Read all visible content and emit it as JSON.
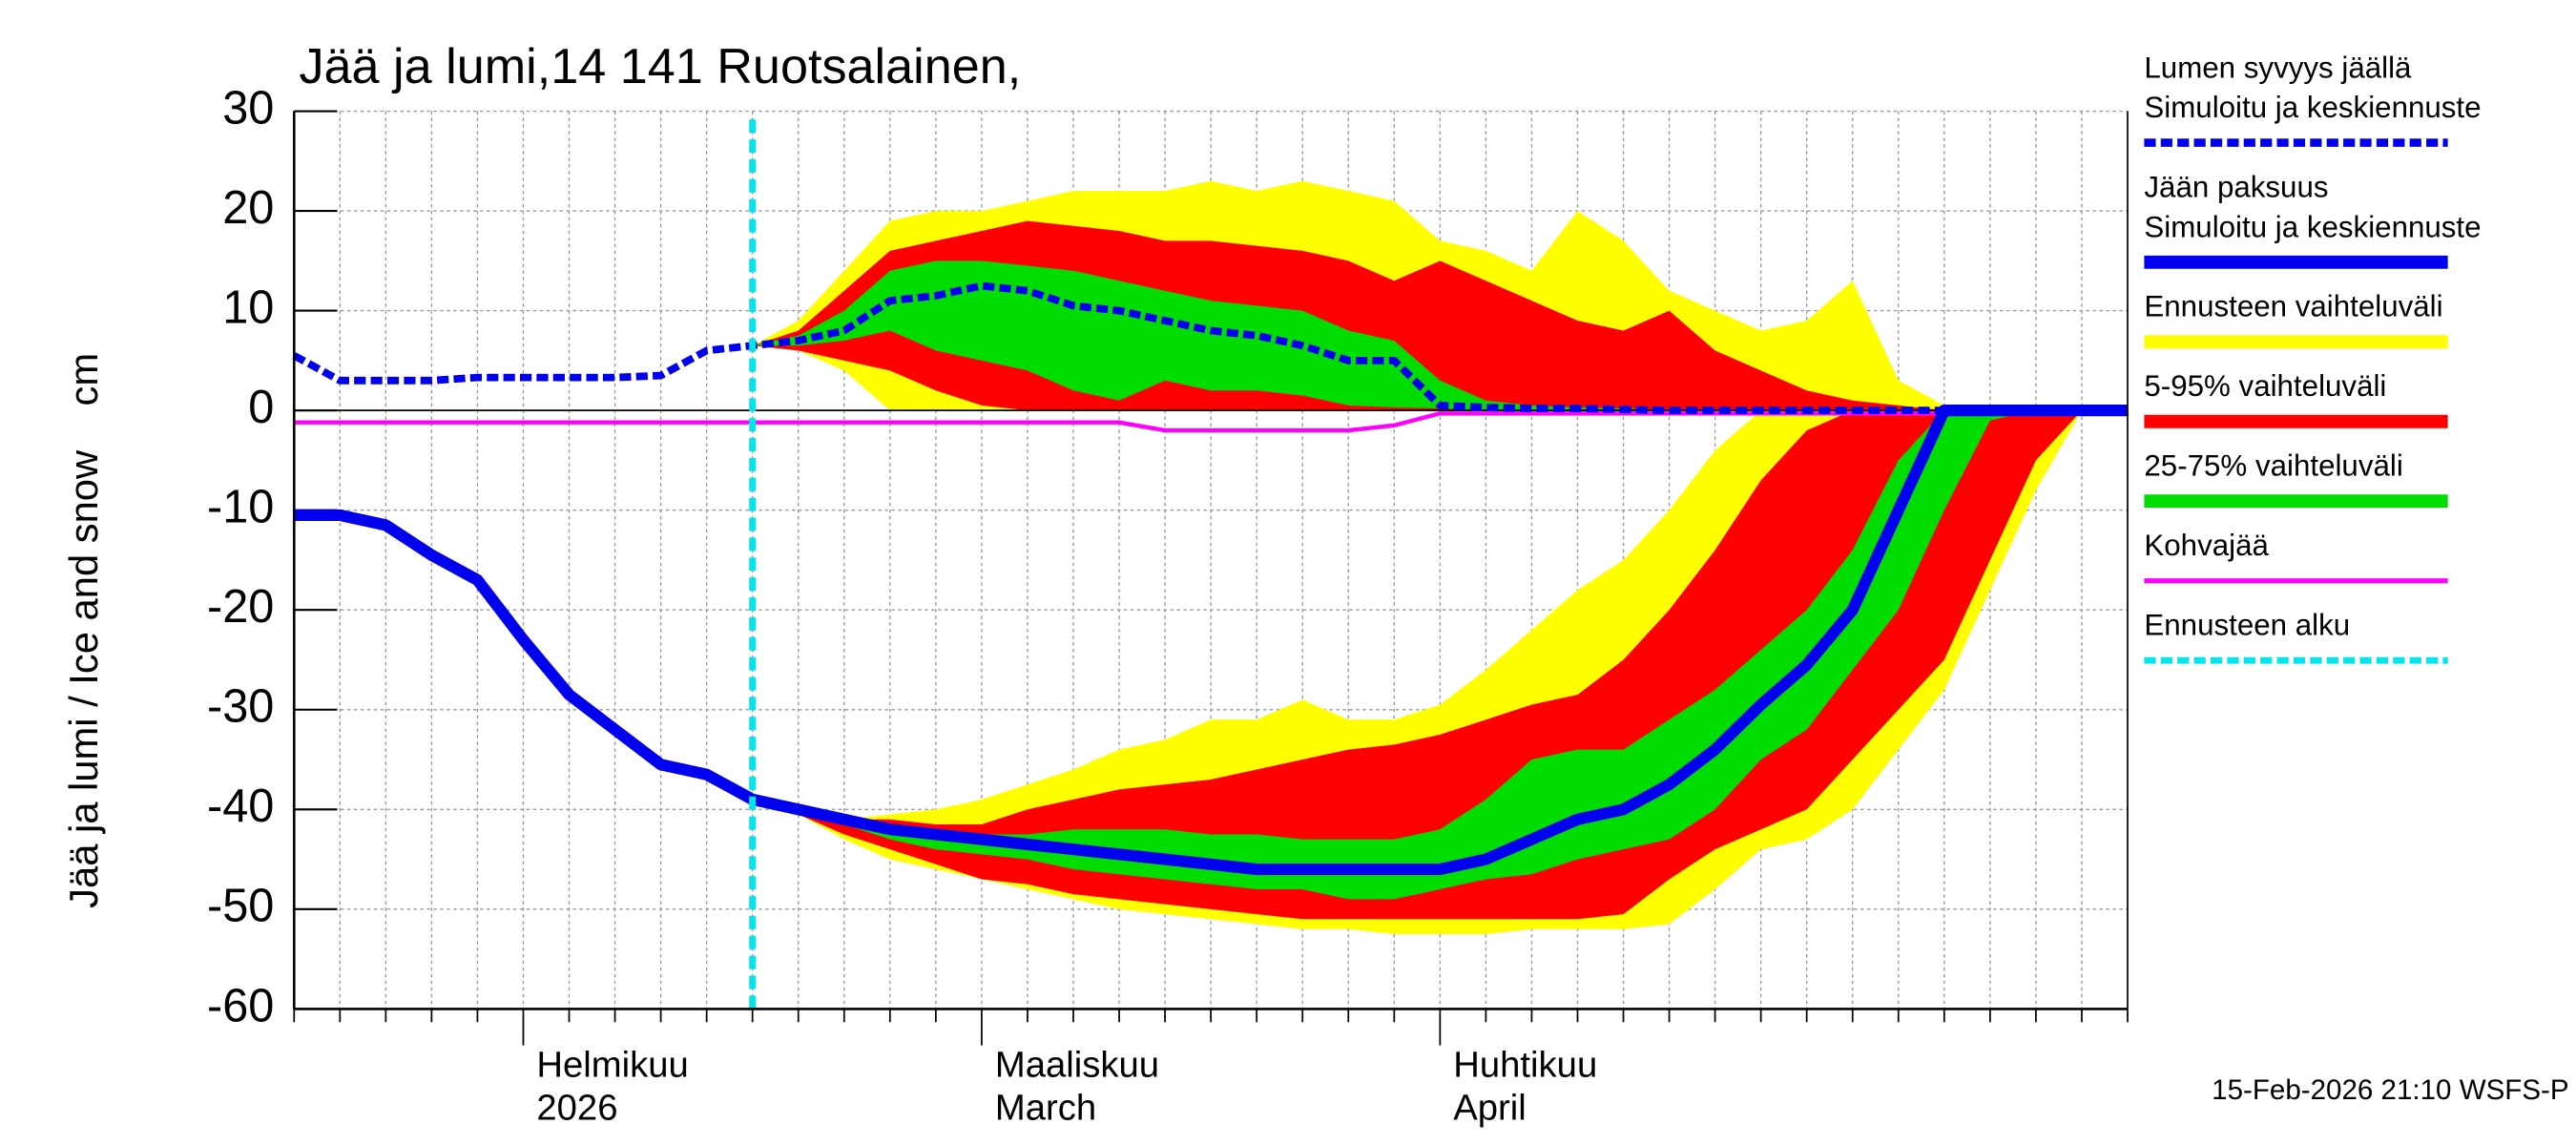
{
  "chart_data": {
    "type": "ice-snow-forecast",
    "title": "Jää ja lumi,14 141 Ruotsalainen,",
    "y_label": "Jää ja lumi / Ice and snow    cm",
    "footer": "15-Feb-2026 21:10 WSFS-P",
    "categories": [
      null,
      null,
      null,
      null,
      null,
      [
        "Helmikuu",
        "2026"
      ],
      null,
      null,
      null,
      null,
      null,
      null,
      null,
      null,
      null,
      [
        "Maaliskuu",
        "March"
      ],
      null,
      null,
      null,
      null,
      null,
      null,
      null,
      null,
      null,
      [
        "Huhtikuu",
        "April"
      ],
      null,
      null,
      null,
      null,
      null,
      null,
      null,
      null,
      null,
      null,
      null,
      null,
      null,
      null,
      null
    ],
    "ylim": [
      -60,
      30
    ],
    "yticks": [
      -60,
      -50,
      -40,
      -30,
      -20,
      -10,
      0,
      10,
      20,
      30
    ],
    "grid": true,
    "forecast_start": 10,
    "bands": [
      {
        "name": [
          "Ennusteen vaihteluväli"
        ],
        "color": "#ffff00",
        "snow_high": [
          null,
          null,
          null,
          null,
          null,
          null,
          null,
          null,
          null,
          null,
          6.5,
          9,
          14,
          19,
          20,
          20,
          21,
          22,
          22,
          22,
          23,
          22,
          23,
          22,
          21,
          17,
          16,
          14,
          20,
          17,
          12,
          10,
          8,
          9,
          13,
          3,
          0.5,
          0,
          0,
          0,
          0
        ],
        "snow_low": [
          null,
          null,
          null,
          null,
          null,
          null,
          null,
          null,
          null,
          null,
          6.5,
          6,
          4,
          0,
          0,
          0,
          0,
          0,
          0,
          0,
          0,
          0,
          0,
          0,
          0,
          0,
          0,
          0,
          0,
          0,
          0,
          0,
          0,
          0,
          0,
          0,
          0,
          0,
          0,
          0,
          0
        ],
        "ice_high": [
          null,
          null,
          null,
          null,
          null,
          null,
          null,
          null,
          null,
          null,
          -39,
          -40,
          -41,
          -40.5,
          -40,
          -39,
          -37.5,
          -36,
          -34,
          -33,
          -31,
          -31,
          -29,
          -31,
          -31,
          -29.5,
          -26,
          -22,
          -18,
          -15,
          -10,
          -4,
          0,
          0,
          0,
          0,
          0,
          0,
          0,
          0,
          0
        ],
        "ice_low": [
          null,
          null,
          null,
          null,
          null,
          null,
          null,
          null,
          null,
          null,
          -39,
          -40.5,
          -43,
          -45,
          -46,
          -47,
          -48,
          -49,
          -50,
          -50.5,
          -51,
          -51.5,
          -52,
          -52,
          -52.5,
          -52.5,
          -52.5,
          -52,
          -52,
          -52,
          -51.5,
          -48,
          -44,
          -43,
          -40,
          -34,
          -28,
          -18,
          -8,
          0,
          0
        ]
      },
      {
        "name": [
          "5-95% vaihteluväli"
        ],
        "color": "#ff0000",
        "snow_high": [
          null,
          null,
          null,
          null,
          null,
          null,
          null,
          null,
          null,
          null,
          6.5,
          8,
          12,
          16,
          17,
          18,
          19,
          18.5,
          18,
          17,
          17,
          16.5,
          16,
          15,
          13,
          15,
          13,
          11,
          9,
          8,
          10,
          6,
          4,
          2,
          1,
          0.5,
          0,
          0,
          0,
          0,
          0
        ],
        "snow_low": [
          null,
          null,
          null,
          null,
          null,
          null,
          null,
          null,
          null,
          null,
          6.5,
          6,
          5,
          4,
          2,
          0.5,
          0,
          0,
          0,
          0,
          0,
          0,
          0,
          0,
          0,
          0,
          0,
          0,
          0,
          0,
          0,
          0,
          0,
          0,
          0,
          0,
          0,
          0,
          0,
          0,
          0
        ],
        "ice_high": [
          null,
          null,
          null,
          null,
          null,
          null,
          null,
          null,
          null,
          null,
          -39,
          -40,
          -41,
          -41,
          -41.5,
          -41.5,
          -40,
          -39,
          -38,
          -37.5,
          -37,
          -36,
          -35,
          -34,
          -33.5,
          -32.5,
          -31,
          -29.5,
          -28.5,
          -25,
          -20,
          -14,
          -7,
          -2,
          0,
          0,
          0,
          0,
          0,
          0,
          0
        ],
        "ice_low": [
          null,
          null,
          null,
          null,
          null,
          null,
          null,
          null,
          null,
          null,
          -39,
          -40.5,
          -42.5,
          -44,
          -45.5,
          -47,
          -47.5,
          -48.5,
          -49,
          -49.5,
          -50,
          -50.5,
          -51,
          -51,
          -51,
          -51,
          -51,
          -51,
          -51,
          -50.5,
          -47,
          -44,
          -42,
          -40,
          -35,
          -30,
          -25,
          -15,
          -5,
          0,
          0
        ]
      },
      {
        "name": [
          "25-75% vaihteluväli"
        ],
        "color": "#00dd00",
        "snow_high": [
          null,
          null,
          null,
          null,
          null,
          null,
          null,
          null,
          null,
          null,
          6.5,
          7.5,
          10,
          14,
          15,
          15,
          14.5,
          14,
          13,
          12,
          11,
          10.5,
          10,
          8,
          7,
          3,
          1,
          0.5,
          0.3,
          0.2,
          0,
          0,
          0,
          0,
          0,
          0,
          0,
          0,
          0,
          0,
          0
        ],
        "snow_low": [
          null,
          null,
          null,
          null,
          null,
          null,
          null,
          null,
          null,
          null,
          6.5,
          6.5,
          7,
          8,
          6,
          5,
          4,
          2,
          1,
          3,
          2,
          2,
          1.5,
          0.5,
          0.3,
          0.2,
          0,
          0,
          0,
          0,
          0,
          0,
          0,
          0,
          0,
          0,
          0,
          0,
          0,
          0,
          0
        ],
        "ice_high": [
          null,
          null,
          null,
          null,
          null,
          null,
          null,
          null,
          null,
          null,
          -39,
          -40,
          -41,
          -42,
          -42.5,
          -42.5,
          -42.5,
          -42,
          -42,
          -42,
          -42.5,
          -42.5,
          -43,
          -43,
          -43,
          -42,
          -39,
          -35,
          -34,
          -34,
          -31,
          -28,
          -24,
          -20,
          -14,
          -5,
          0,
          0,
          0,
          0,
          0
        ],
        "ice_low": [
          null,
          null,
          null,
          null,
          null,
          null,
          null,
          null,
          null,
          null,
          -39,
          -40,
          -41.5,
          -43,
          -44,
          -44.5,
          -45,
          -46,
          -46.5,
          -47,
          -47.5,
          -48,
          -48,
          -49,
          -49,
          -48,
          -47,
          -46.5,
          -45,
          -44,
          -43,
          -40,
          -35,
          -32,
          -26,
          -20,
          -10,
          -1,
          0,
          0,
          0
        ]
      }
    ],
    "series": [
      {
        "name": [
          "Lumen syvyys jäällä",
          "Simuloitu ja keskiennuste"
        ],
        "color": "#0000ee",
        "dashed": true,
        "values": [
          5.5,
          3,
          3,
          3,
          3.3,
          3.3,
          3.3,
          3.3,
          3.5,
          6,
          6.5,
          7,
          8,
          11,
          11.5,
          12.5,
          12,
          10.5,
          10,
          9,
          8,
          7.5,
          6.5,
          5,
          5,
          0.5,
          0.3,
          0.2,
          0.2,
          0.1,
          0,
          0,
          0,
          0,
          0,
          0,
          0,
          0,
          0,
          0,
          0
        ]
      },
      {
        "name": [
          "Jään paksuus",
          "Simuloitu ja keskiennuste"
        ],
        "color": "#0000ee",
        "dashed": false,
        "values": [
          -10.5,
          -10.5,
          -11.5,
          -14.5,
          -17,
          -23,
          -28.5,
          -32,
          -35.5,
          -36.5,
          -39,
          -40,
          -41,
          -42,
          -42.5,
          -43,
          -43.5,
          -44,
          -44.5,
          -45,
          -45.5,
          -46,
          -46,
          -46,
          -46,
          -46,
          -45,
          -43,
          -41,
          -40,
          -37.5,
          -34,
          -29.5,
          -25.5,
          -20,
          -10,
          0,
          0,
          0,
          0,
          0
        ]
      },
      {
        "name": [
          "Kohvajää"
        ],
        "color": "#ff00ff",
        "dashed": false,
        "values": [
          -1.2,
          -1.2,
          -1.2,
          -1.2,
          -1.2,
          -1.2,
          -1.2,
          -1.2,
          -1.2,
          -1.2,
          -1.2,
          -1.2,
          -1.2,
          -1.2,
          -1.2,
          -1.2,
          -1.2,
          -1.2,
          -1.2,
          -2,
          -2,
          -2,
          -2,
          -2,
          -1.5,
          -0.3,
          -0.3,
          -0.3,
          -0.3,
          -0.3,
          -0.3,
          -0.3,
          -0.3,
          -0.3,
          -0.3,
          -0.3,
          -0.3,
          -0.3,
          -0.3,
          -0.3,
          -0.3
        ]
      }
    ],
    "forecast_legend": {
      "name": [
        "Ennusteen alku"
      ],
      "color": "#00e5ee"
    }
  }
}
